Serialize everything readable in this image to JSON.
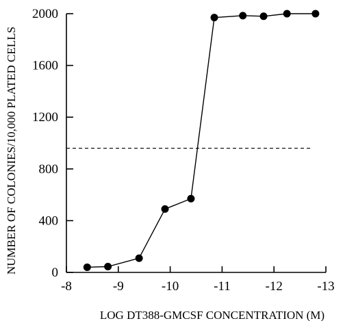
{
  "chart_data": {
    "type": "line",
    "title": "",
    "xlabel": "LOG DT388-GMCSF CONCENTRATION (M)",
    "ylabel": "NUMBER OF COLONIES/10,000 PLATED CELLS",
    "xlim": [
      -8,
      -13
    ],
    "ylim": [
      0,
      2000
    ],
    "xticks": [
      -8,
      -9,
      -10,
      -11,
      -12,
      -13
    ],
    "yticks": [
      0,
      400,
      800,
      1200,
      1600,
      2000
    ],
    "xtick_labels": [
      "-8",
      "-9",
      "-10",
      "-11",
      "-12",
      "-13"
    ],
    "ytick_labels": [
      "0",
      "400",
      "800",
      "1200",
      "1600",
      "2000"
    ],
    "grid": false,
    "series": [
      {
        "x": [
          -8.4,
          -8.8,
          -9.4,
          -9.9,
          -10.4,
          -10.85,
          -11.4,
          -11.8,
          -12.25,
          -12.8
        ],
        "y": [
          40,
          45,
          110,
          490,
          570,
          1970,
          1985,
          1980,
          2000,
          2000
        ],
        "marker": "filled-circle",
        "color": "#000000"
      }
    ],
    "reference_lines": [
      {
        "orientation": "horizontal",
        "y": 960,
        "style": "dashed"
      }
    ]
  }
}
